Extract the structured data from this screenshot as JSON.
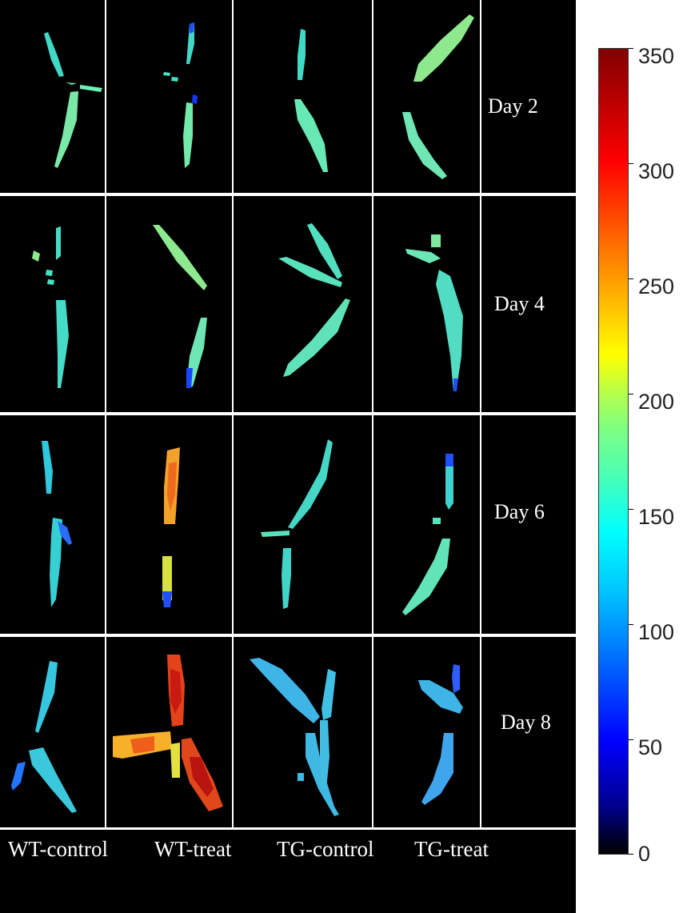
{
  "rows": [
    "Day 2",
    "Day 4",
    "Day 6",
    "Day 8"
  ],
  "columns": [
    "WT-control",
    "WT-treat",
    "TG-control",
    "TG-treat"
  ],
  "colorbar": {
    "min": 0,
    "max": 350,
    "ticks": [
      "350",
      "300",
      "250",
      "200",
      "150",
      "100",
      "50",
      "0"
    ]
  },
  "colors": {
    "background": "#000000",
    "grid_lines": "#ffffff",
    "text": "#ffffff"
  }
}
